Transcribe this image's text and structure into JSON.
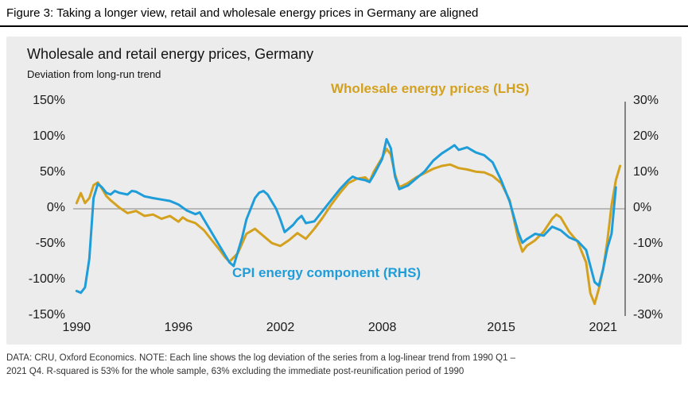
{
  "figure_title": "Figure 3: Taking a longer view, retail and wholesale energy prices in Germany are aligned",
  "chart": {
    "title": "Wholesale and retail energy prices, Germany",
    "subtitle": "Deviation from long-run trend",
    "wholesale_label": "Wholesale energy prices (LHS)",
    "cpi_label": "CPI energy component (RHS)",
    "colors": {
      "wholesale": "#D4A11E",
      "cpi": "#1F9DD9",
      "panel_bg": "#ECECEC",
      "zero_line": "#A6A6A6",
      "right_spine": "#4D4D4D"
    }
  },
  "chart_data": {
    "type": "line",
    "title": "Wholesale and retail energy prices, Germany",
    "subtitle": "Deviation from long-run trend",
    "x_axis": {
      "ticks": [
        1990,
        1996,
        2002,
        2008,
        2015,
        2021
      ],
      "range": [
        1989.8,
        2022.3
      ]
    },
    "left_axis": {
      "label": "Wholesale energy prices (LHS)",
      "ticks_pct": [
        150,
        100,
        50,
        0,
        -50,
        -100,
        -150
      ],
      "range": [
        -150,
        150
      ]
    },
    "right_axis": {
      "label": "CPI energy component (RHS)",
      "ticks_pct": [
        30,
        20,
        10,
        0,
        -10,
        -20,
        -30
      ],
      "range": [
        -30,
        30
      ]
    },
    "grid": "zero-line-only",
    "legend": "inline-annotations",
    "series": [
      {
        "id": "wholesale",
        "name": "Wholesale energy prices",
        "axis": "left",
        "unit": "% deviation from long-run trend",
        "color": "#D4A11E",
        "points": [
          [
            1990.0,
            8
          ],
          [
            1990.25,
            22
          ],
          [
            1990.5,
            8
          ],
          [
            1990.75,
            15
          ],
          [
            1991.0,
            33
          ],
          [
            1991.25,
            37
          ],
          [
            1991.5,
            28
          ],
          [
            1991.75,
            18
          ],
          [
            1992.0,
            12
          ],
          [
            1992.5,
            2
          ],
          [
            1993.0,
            -6
          ],
          [
            1993.5,
            -3
          ],
          [
            1994.0,
            -10
          ],
          [
            1994.5,
            -8
          ],
          [
            1995.0,
            -14
          ],
          [
            1995.5,
            -10
          ],
          [
            1996.0,
            -18
          ],
          [
            1996.25,
            -12
          ],
          [
            1996.5,
            -16
          ],
          [
            1997.0,
            -20
          ],
          [
            1997.5,
            -30
          ],
          [
            1998.0,
            -45
          ],
          [
            1998.5,
            -60
          ],
          [
            1998.75,
            -68
          ],
          [
            1999.0,
            -74
          ],
          [
            1999.5,
            -62
          ],
          [
            2000.0,
            -35
          ],
          [
            2000.5,
            -28
          ],
          [
            2001.0,
            -38
          ],
          [
            2001.5,
            -48
          ],
          [
            2002.0,
            -52
          ],
          [
            2002.5,
            -44
          ],
          [
            2003.0,
            -34
          ],
          [
            2003.5,
            -42
          ],
          [
            2004.0,
            -28
          ],
          [
            2004.5,
            -12
          ],
          [
            2005.0,
            6
          ],
          [
            2005.5,
            22
          ],
          [
            2006.0,
            36
          ],
          [
            2006.5,
            42
          ],
          [
            2007.0,
            44
          ],
          [
            2007.25,
            38
          ],
          [
            2007.5,
            52
          ],
          [
            2008.0,
            72
          ],
          [
            2008.25,
            84
          ],
          [
            2008.5,
            76
          ],
          [
            2008.75,
            48
          ],
          [
            2009.0,
            30
          ],
          [
            2009.5,
            36
          ],
          [
            2010.0,
            44
          ],
          [
            2010.5,
            50
          ],
          [
            2011.0,
            56
          ],
          [
            2011.5,
            60
          ],
          [
            2012.0,
            62
          ],
          [
            2012.5,
            57
          ],
          [
            2013.0,
            55
          ],
          [
            2013.5,
            52
          ],
          [
            2014.0,
            51
          ],
          [
            2014.5,
            46
          ],
          [
            2015.0,
            36
          ],
          [
            2015.5,
            12
          ],
          [
            2016.0,
            -42
          ],
          [
            2016.25,
            -60
          ],
          [
            2016.5,
            -52
          ],
          [
            2017.0,
            -44
          ],
          [
            2017.5,
            -32
          ],
          [
            2018.0,
            -14
          ],
          [
            2018.25,
            -8
          ],
          [
            2018.5,
            -12
          ],
          [
            2019.0,
            -32
          ],
          [
            2019.5,
            -46
          ],
          [
            2020.0,
            -75
          ],
          [
            2020.25,
            -118
          ],
          [
            2020.5,
            -133
          ],
          [
            2020.75,
            -112
          ],
          [
            2021.0,
            -85
          ],
          [
            2021.25,
            -45
          ],
          [
            2021.5,
            5
          ],
          [
            2021.75,
            40
          ],
          [
            2022.0,
            60
          ]
        ]
      },
      {
        "id": "cpi",
        "name": "CPI energy component",
        "axis": "right",
        "unit": "% deviation from long-run trend",
        "color": "#1F9DD9",
        "points": [
          [
            1990.0,
            -23
          ],
          [
            1990.25,
            -23.5
          ],
          [
            1990.5,
            -22
          ],
          [
            1990.75,
            -14
          ],
          [
            1991.0,
            3
          ],
          [
            1991.25,
            7
          ],
          [
            1991.5,
            6
          ],
          [
            1991.75,
            4.5
          ],
          [
            1992.0,
            4
          ],
          [
            1992.25,
            5
          ],
          [
            1992.5,
            4.5
          ],
          [
            1993.0,
            4
          ],
          [
            1993.25,
            5
          ],
          [
            1993.5,
            4.8
          ],
          [
            1994.0,
            3.5
          ],
          [
            1994.5,
            3
          ],
          [
            1995.0,
            2.6
          ],
          [
            1995.5,
            2.2
          ],
          [
            1996.0,
            1.2
          ],
          [
            1996.5,
            -0.5
          ],
          [
            1997.0,
            -1.5
          ],
          [
            1997.25,
            -1
          ],
          [
            1997.5,
            -3
          ],
          [
            1998.0,
            -7
          ],
          [
            1998.5,
            -11
          ],
          [
            1999.0,
            -15
          ],
          [
            1999.25,
            -16
          ],
          [
            1999.5,
            -12
          ],
          [
            1999.75,
            -8
          ],
          [
            2000.0,
            -3
          ],
          [
            2000.5,
            3
          ],
          [
            2000.75,
            4.5
          ],
          [
            2001.0,
            5
          ],
          [
            2001.25,
            4
          ],
          [
            2001.5,
            2
          ],
          [
            2001.75,
            0
          ],
          [
            2002.0,
            -3
          ],
          [
            2002.25,
            -6.5
          ],
          [
            2002.5,
            -5.5
          ],
          [
            2002.75,
            -4.5
          ],
          [
            2003.0,
            -3
          ],
          [
            2003.25,
            -2
          ],
          [
            2003.5,
            -4
          ],
          [
            2004.0,
            -3.5
          ],
          [
            2004.25,
            -2
          ],
          [
            2004.5,
            -0.5
          ],
          [
            2005.0,
            2.5
          ],
          [
            2005.5,
            5.5
          ],
          [
            2006.0,
            8
          ],
          [
            2006.25,
            9
          ],
          [
            2006.5,
            8.5
          ],
          [
            2007.0,
            8
          ],
          [
            2007.25,
            7.5
          ],
          [
            2007.5,
            9.5
          ],
          [
            2008.0,
            14
          ],
          [
            2008.25,
            19.5
          ],
          [
            2008.5,
            17
          ],
          [
            2008.75,
            9
          ],
          [
            2009.0,
            5.5
          ],
          [
            2009.5,
            6.5
          ],
          [
            2010.0,
            8.5
          ],
          [
            2010.5,
            10.5
          ],
          [
            2011.0,
            13.5
          ],
          [
            2011.5,
            15.5
          ],
          [
            2012.0,
            17
          ],
          [
            2012.25,
            17.8
          ],
          [
            2012.5,
            16.5
          ],
          [
            2013.0,
            17.2
          ],
          [
            2013.25,
            16.5
          ],
          [
            2013.5,
            15.8
          ],
          [
            2014.0,
            15
          ],
          [
            2014.5,
            13
          ],
          [
            2015.0,
            8
          ],
          [
            2015.5,
            2
          ],
          [
            2016.0,
            -6.5
          ],
          [
            2016.25,
            -9.5
          ],
          [
            2016.5,
            -8.5
          ],
          [
            2017.0,
            -7
          ],
          [
            2017.5,
            -7.5
          ],
          [
            2018.0,
            -5
          ],
          [
            2018.25,
            -5.5
          ],
          [
            2018.5,
            -6
          ],
          [
            2019.0,
            -8
          ],
          [
            2019.5,
            -9
          ],
          [
            2020.0,
            -11.5
          ],
          [
            2020.5,
            -20.5
          ],
          [
            2020.75,
            -21.5
          ],
          [
            2021.0,
            -17
          ],
          [
            2021.25,
            -11
          ],
          [
            2021.5,
            -7
          ],
          [
            2021.75,
            6
          ]
        ]
      }
    ]
  },
  "footer": {
    "lines": [
      "DATA: CRU, Oxford Economics. NOTE: Each line shows the log deviation of the series from a log-linear trend from 1990 Q1 –",
      "2021 Q4. R-squared is 53% for the whole sample, 63% excluding the immediate post-reunification period of 1990"
    ]
  }
}
